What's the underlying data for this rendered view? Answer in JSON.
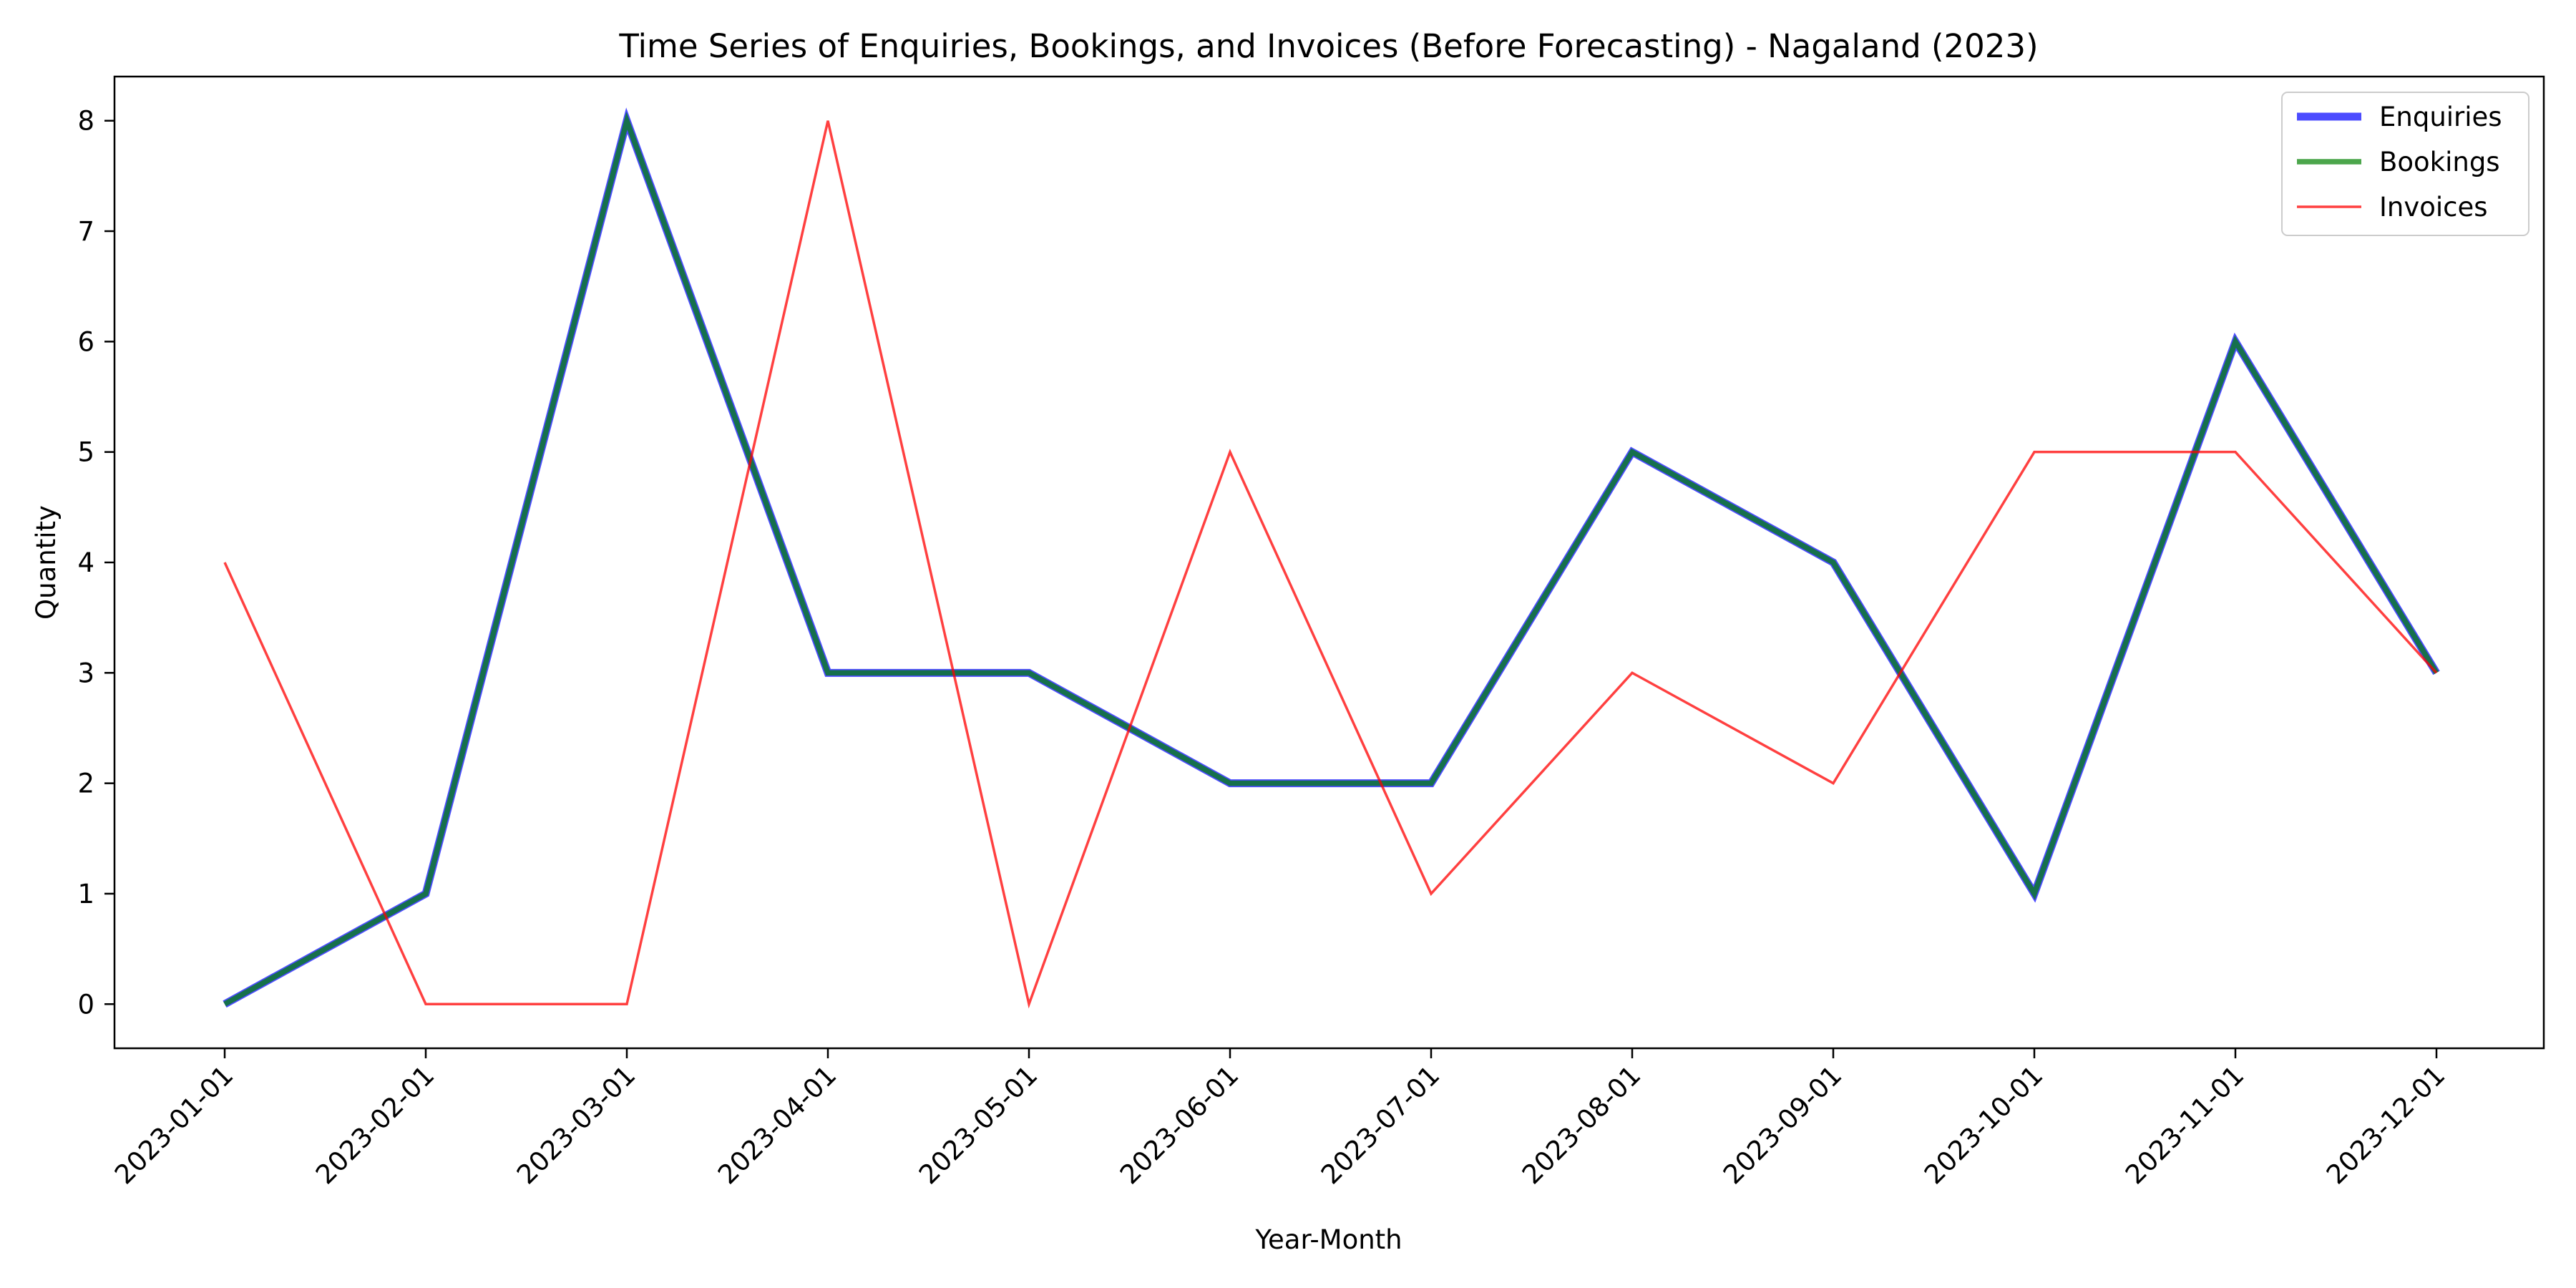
{
  "chart_data": {
    "type": "line",
    "title": "Time Series of Enquiries, Bookings, and Invoices (Before Forecasting) - Nagaland (2023)",
    "xlabel": "Year-Month",
    "ylabel": "Quantity",
    "x": [
      "2023-01-01",
      "2023-02-01",
      "2023-03-01",
      "2023-04-01",
      "2023-05-01",
      "2023-06-01",
      "2023-07-01",
      "2023-08-01",
      "2023-09-01",
      "2023-10-01",
      "2023-11-01",
      "2023-12-01"
    ],
    "yticks": [
      0,
      1,
      2,
      3,
      4,
      5,
      6,
      7,
      8
    ],
    "ylim": [
      -0.4,
      8.4
    ],
    "grid": false,
    "legend_position": "top-right",
    "series": [
      {
        "name": "Enquiries",
        "color": "#0000ff",
        "values": [
          0,
          1,
          8,
          3,
          3,
          2,
          2,
          5,
          4,
          1,
          6,
          3
        ]
      },
      {
        "name": "Bookings",
        "color": "#008000",
        "values": [
          0,
          1,
          8,
          3,
          3,
          2,
          2,
          5,
          4,
          1,
          6,
          3
        ]
      },
      {
        "name": "Invoices",
        "color": "#ff0000",
        "values": [
          4,
          0,
          0,
          8,
          0,
          5,
          1,
          3,
          2,
          5,
          5,
          3
        ]
      }
    ]
  }
}
